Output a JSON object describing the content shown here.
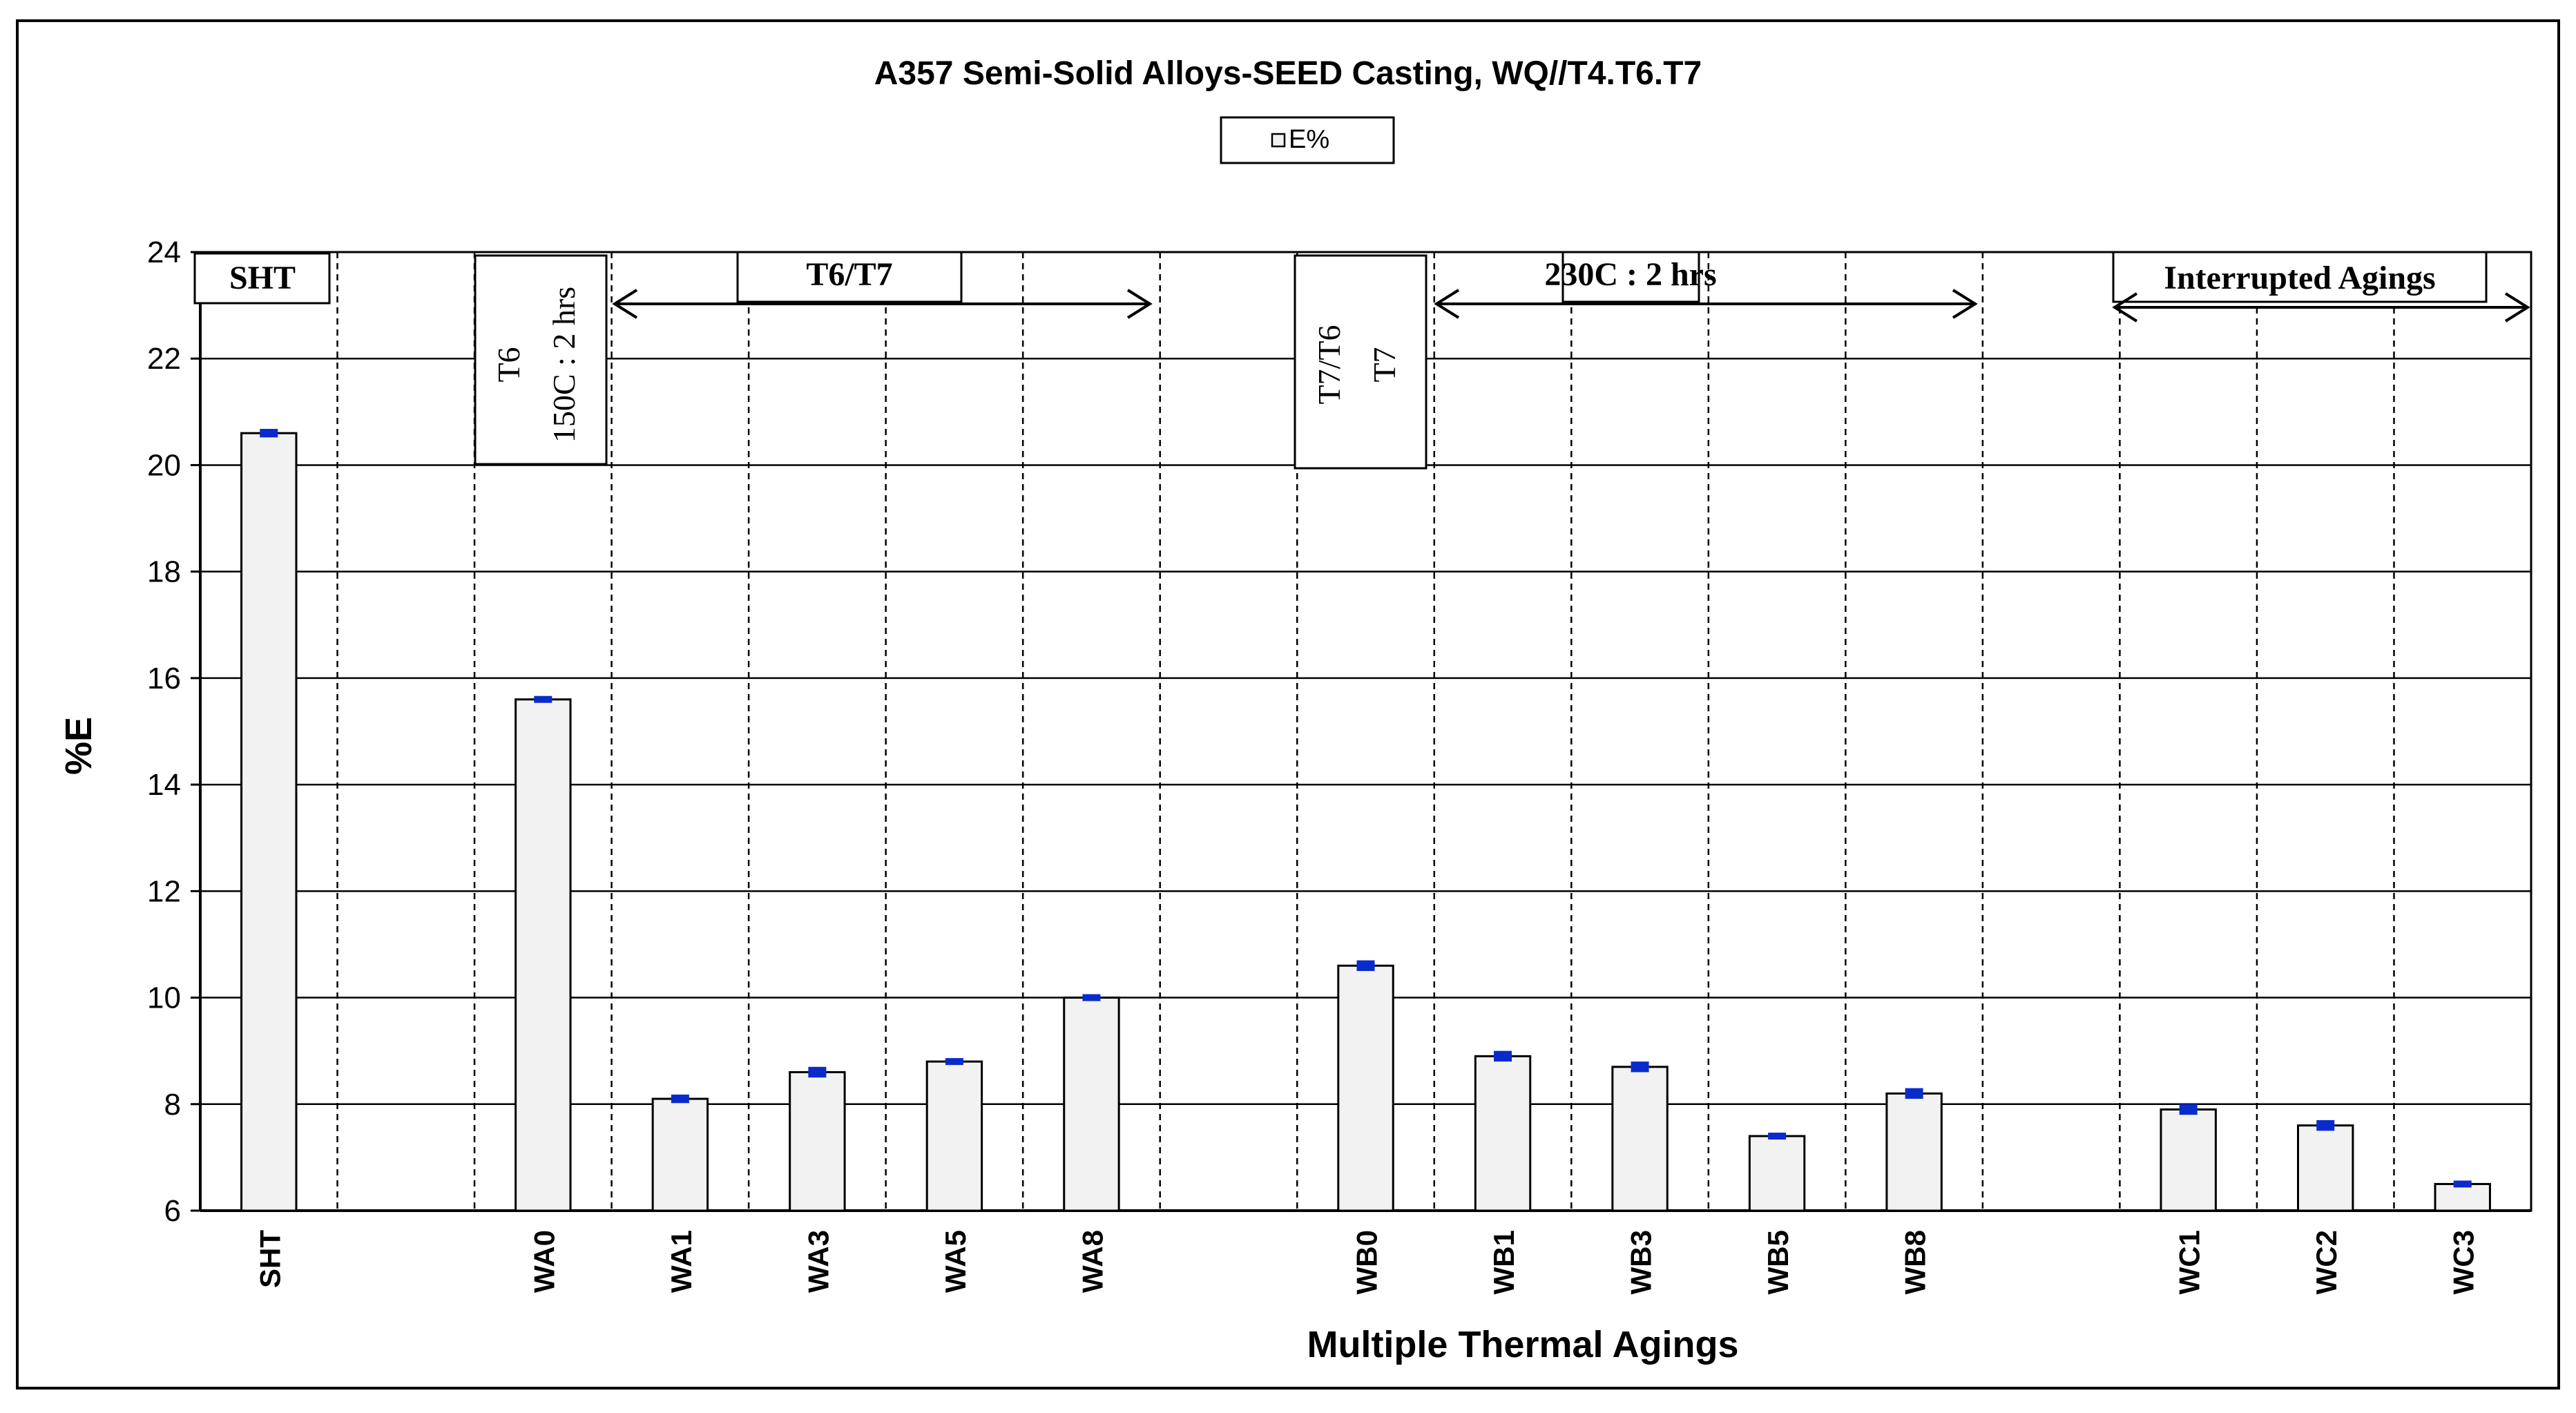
{
  "chart_data": {
    "type": "bar",
    "title": "A357  Semi-Solid Alloys-SEED Casting, WQ//T4.T6.T7",
    "xlabel": "Multiple  Thermal Agings",
    "ylabel": "%E",
    "ylim": [
      6,
      24
    ],
    "yticks": [
      6,
      8,
      10,
      12,
      14,
      16,
      18,
      20,
      22,
      24
    ],
    "grid": "horizontal solid, vertical dashed",
    "legend": "top-center",
    "categories": [
      "SHT",
      "",
      "WA0",
      "WA1",
      "WA3",
      "WA5",
      "WA8",
      "",
      "WB0",
      "WB1",
      "WB3",
      "WB5",
      "WB8",
      "",
      "WC1",
      "WC2",
      "WC3"
    ],
    "series": [
      {
        "name": "E%",
        "values": [
          20.6,
          null,
          15.6,
          8.1,
          8.6,
          8.8,
          10.0,
          null,
          10.6,
          8.9,
          8.7,
          7.4,
          8.2,
          null,
          7.9,
          7.6,
          6.5
        ],
        "errors": [
          0.08,
          null,
          0.05,
          0.08,
          0.1,
          0.06,
          0.04,
          null,
          0.1,
          0.1,
          0.1,
          0.05,
          0.1,
          null,
          0.1,
          0.1,
          0.04
        ]
      }
    ],
    "annotations": [
      {
        "id": "sht",
        "text": "SHT"
      },
      {
        "id": "t6t7",
        "text": "T6/T7"
      },
      {
        "id": "t6_line1",
        "text": "T6"
      },
      {
        "id": "t6_line2",
        "text": "150C : 2 hrs"
      },
      {
        "id": "t7t6",
        "text": "T7/T6"
      },
      {
        "id": "t7_line1",
        "text": "T7"
      },
      {
        "id": "t7_line2",
        "text": "230C : 2 hrs"
      },
      {
        "id": "interrupted",
        "text": "Interrupted  Agings"
      }
    ]
  },
  "colors": {
    "bar_fill": "#f2f2f2",
    "bar_stroke": "#000000",
    "error_marker": "#0a2bcc",
    "grid": "#000000",
    "background": "#ffffff"
  }
}
